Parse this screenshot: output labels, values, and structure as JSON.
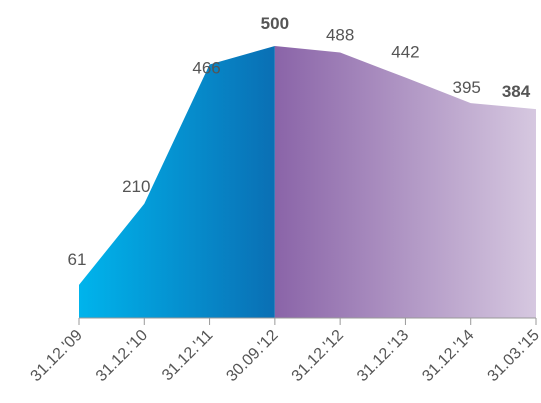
{
  "chart_data": {
    "type": "area",
    "categories": [
      "31.12.'09",
      "31.12.'10",
      "31.12.'11",
      "30.09.'12",
      "31.12.'12",
      "31.12.'13",
      "31.12.'14",
      "31.03.'15"
    ],
    "values": [
      61,
      210,
      466,
      500,
      488,
      442,
      395,
      384
    ],
    "labels": [
      "61",
      "210",
      "466",
      "500",
      "488",
      "442",
      "395",
      "384"
    ],
    "highlighted_labels": [
      "500",
      "384"
    ],
    "ylim": [
      0,
      500
    ],
    "grid": false,
    "legend": "none",
    "colors": {
      "segment1_start": "#00b4ec",
      "segment1_end": "#0a6fb4",
      "segment2_start": "#8a64a8",
      "segment2_end": "#d6c8e0",
      "label": "#555555",
      "highlight_end": "#5a3d7a",
      "axis": "#999999"
    }
  }
}
